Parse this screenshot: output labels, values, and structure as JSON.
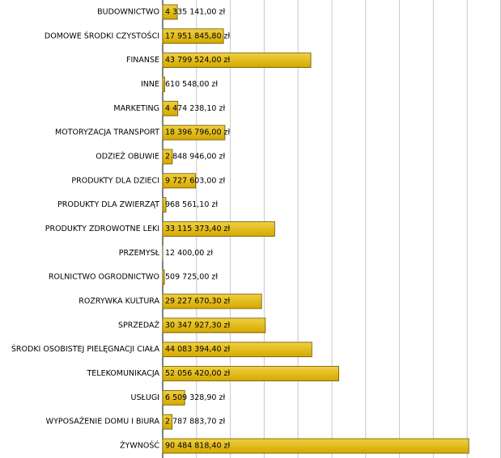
{
  "chart_data": {
    "type": "hbar",
    "categories": [
      "BUDOWNICTWO",
      "DOMOWE ŚRODKI CZYSTOŚCI",
      "FINANSE",
      "INNE",
      "MARKETING",
      "MOTORYZACJA TRANSPORT",
      "ODZIEŻ OBUWIE",
      "PRODUKTY DLA DZIECI",
      "PRODUKTY DLA ZWIERZĄT",
      "PRODUKTY ZDROWOTNE LEKI",
      "PRZEMYSŁ",
      "ROLNICTWO OGRODNICTWO",
      "ROZRYWKA KULTURA",
      "SPRZEDAŻ",
      "ŚRODKI OSOBISTEJ PIELĘGNACJI CIAŁA",
      "TELEKOMUNIKACJA",
      "USŁUGI",
      "WYPOSAŻENIE DOMU I BIURA",
      "ŻYWNOŚĆ"
    ],
    "values": [
      4335141,
      17951845.8,
      43799524,
      610548,
      4474238.1,
      18396796,
      2848946,
      9727603,
      968561.1,
      33115373.4,
      12400,
      509725,
      29227670.3,
      30347927.3,
      44083394.4,
      52056420,
      6509328.9,
      2787883.7,
      90484818.4
    ],
    "value_labels": [
      "4 335 141,00 zł",
      "17 951 845,80 zł",
      "43 799 524,00 zł",
      "610 548,00 zł",
      "4 474 238,10 zł",
      "18 396 796,00 zł",
      "2 848 946,00 zł",
      "9 727 603,00 zł",
      "968 561,10 zł",
      "33 115 373,40 zł",
      "12 400,00 zł",
      "509 725,00 zł",
      "29 227 670,30 zł",
      "30 347 927,30 zł",
      "44 083 394,40 zł",
      "52 056 420,00 zł",
      "6 509 328,90 zł",
      "2 787 883,70 zł",
      "90 484 818,40 zł"
    ],
    "color": "#d4a800",
    "xlim": [
      0,
      100000000
    ],
    "xticks": [
      0,
      10000000,
      20000000,
      30000000,
      40000000,
      50000000,
      60000000,
      70000000,
      80000000,
      90000000,
      100000000
    ],
    "grid": true
  }
}
